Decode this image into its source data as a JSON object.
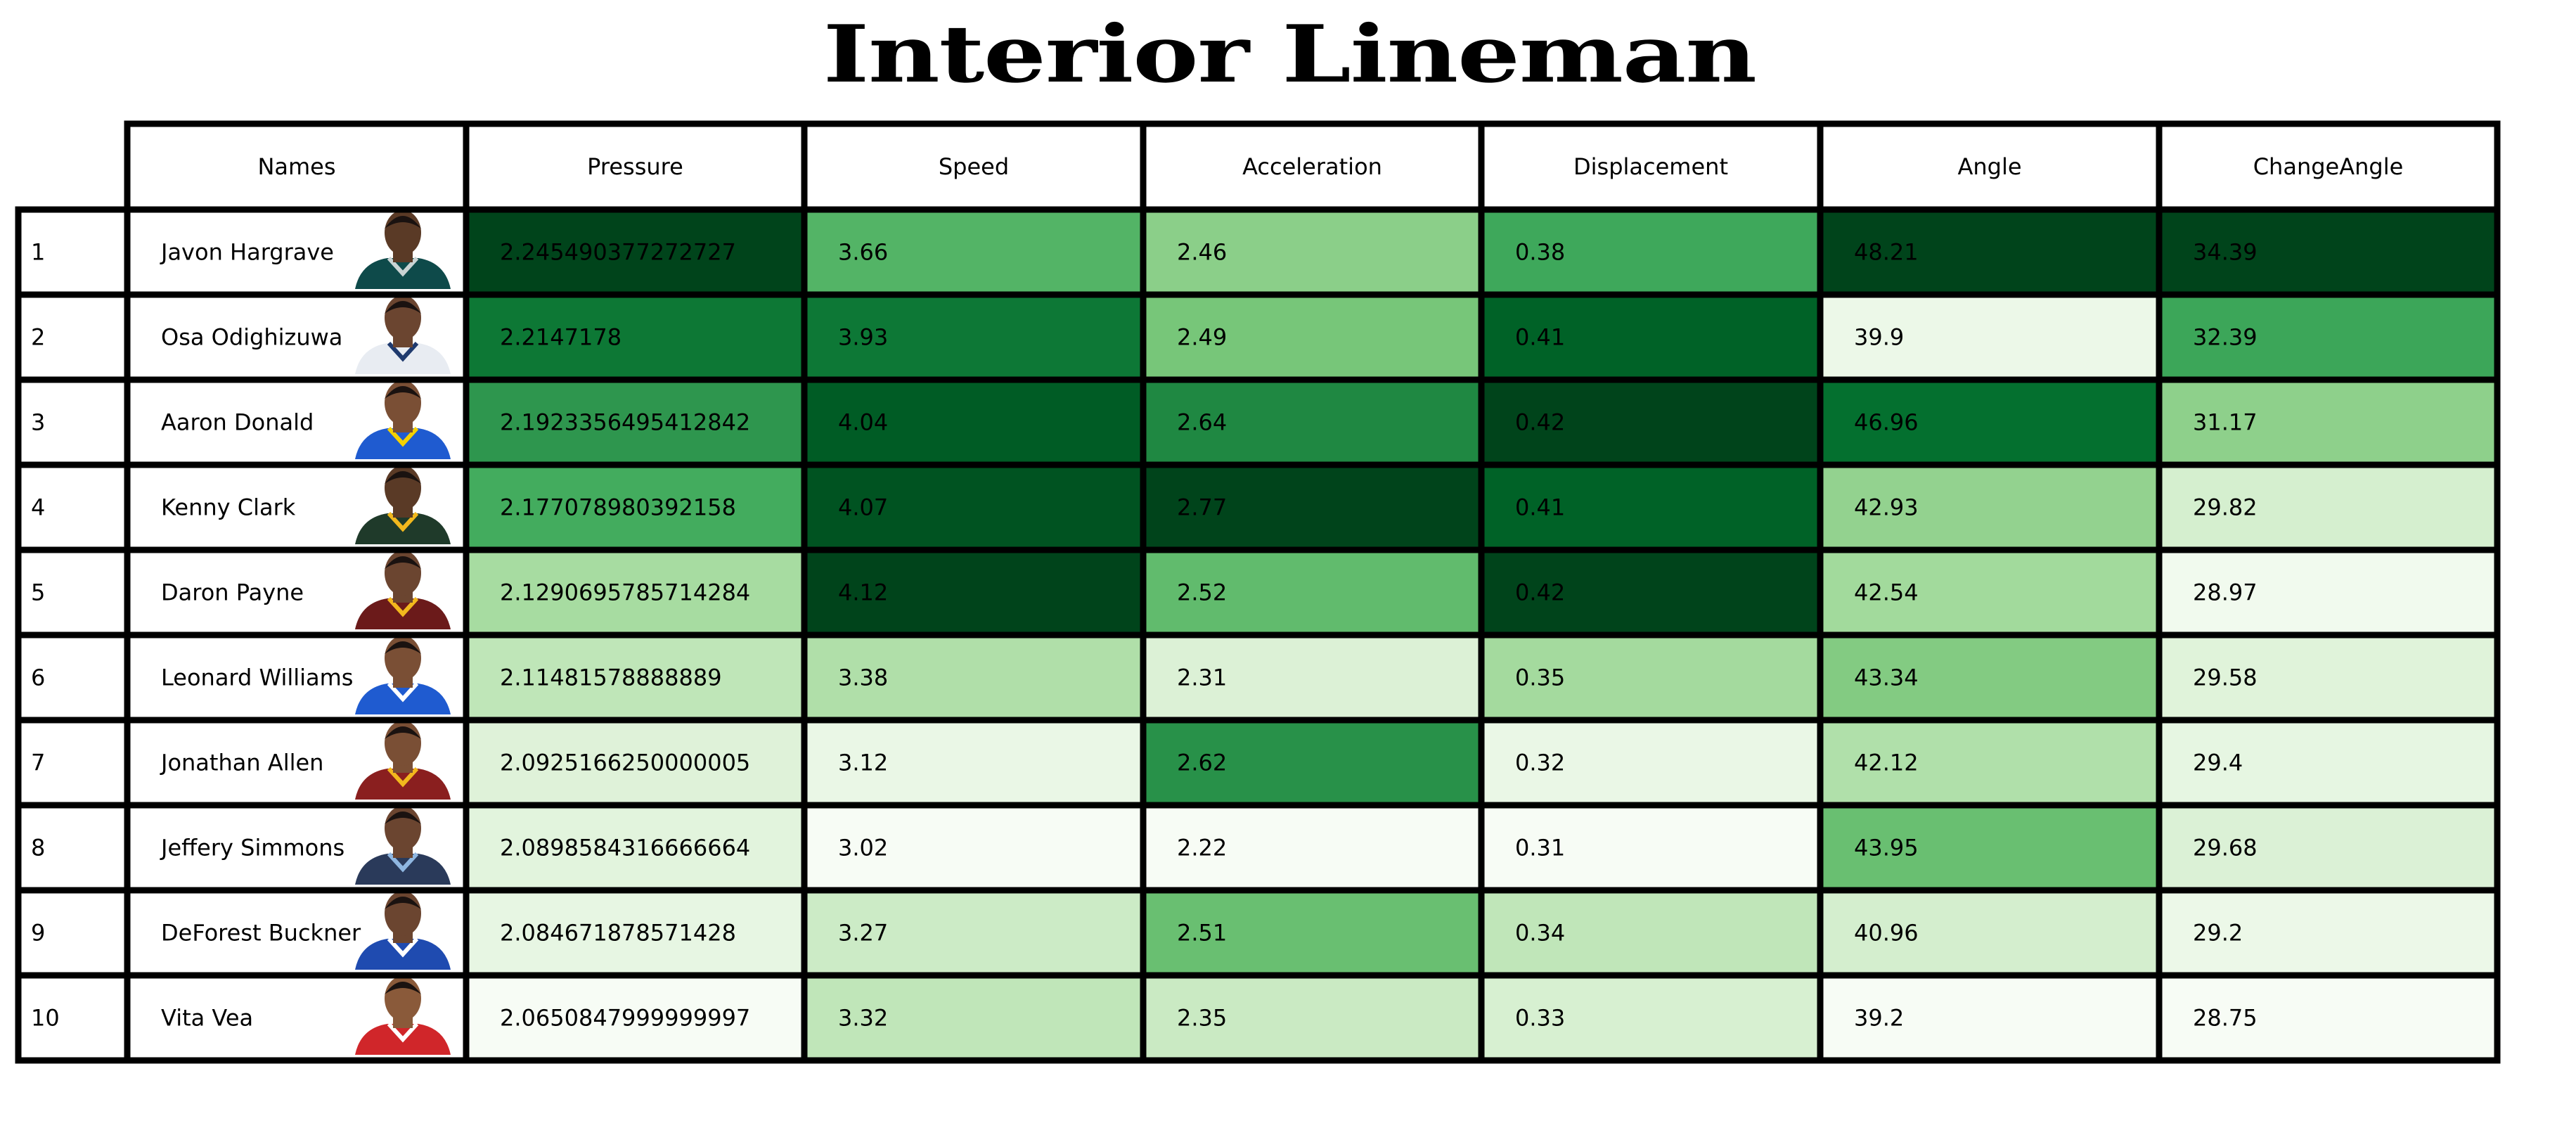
{
  "title": "Interior Lineman",
  "chart_data": {
    "type": "table",
    "colormap": "Greens",
    "columns": [
      "Names",
      "Pressure",
      "Speed",
      "Acceleration",
      "Displacement",
      "Angle",
      "ChangeAngle"
    ],
    "row_index": [
      "1",
      "2",
      "3",
      "4",
      "5",
      "6",
      "7",
      "8",
      "9",
      "10"
    ],
    "rows": [
      {
        "name": "Javon Hargrave",
        "avatar": {
          "skin": "#5a3a26",
          "jersey": "#0e4a4a",
          "trim": "#c9d3d3",
          "hair": "#1a1210"
        },
        "values": [
          "2.245490377272727",
          "3.66",
          "2.46",
          "0.38",
          "48.21",
          "34.39"
        ]
      },
      {
        "name": "Osa Odighizuwa",
        "avatar": {
          "skin": "#6b4530",
          "jersey": "#e8ecf2",
          "trim": "#1f3a6e",
          "hair": "#1a1210"
        },
        "values": [
          "2.2147178",
          "3.93",
          "2.49",
          "0.41",
          "39.9",
          "32.39"
        ]
      },
      {
        "name": "Aaron Donald",
        "avatar": {
          "skin": "#7a4f35",
          "jersey": "#1f5bd0",
          "trim": "#f5d100",
          "hair": "#1a1210"
        },
        "values": [
          "2.1923356495412842",
          "4.04",
          "2.64",
          "0.42",
          "46.96",
          "31.17"
        ]
      },
      {
        "name": "Kenny Clark",
        "avatar": {
          "skin": "#5a3a26",
          "jersey": "#1f3a2a",
          "trim": "#f2b81d",
          "hair": "#1a1210"
        },
        "values": [
          "2.177078980392158",
          "4.07",
          "2.77",
          "0.41",
          "42.93",
          "29.82"
        ]
      },
      {
        "name": "Daron Payne",
        "avatar": {
          "skin": "#6b4530",
          "jersey": "#6b1a1a",
          "trim": "#f2b81d",
          "hair": "#1a1210"
        },
        "values": [
          "2.1290695785714284",
          "4.12",
          "2.52",
          "0.42",
          "42.54",
          "28.97"
        ]
      },
      {
        "name": "Leonard Williams",
        "avatar": {
          "skin": "#7a4f35",
          "jersey": "#1f5bd0",
          "trim": "#ffffff",
          "hair": "#1a1210"
        },
        "values": [
          "2.11481578888889",
          "3.38",
          "2.31",
          "0.35",
          "43.34",
          "29.58"
        ]
      },
      {
        "name": "Jonathan Allen",
        "avatar": {
          "skin": "#7a4f35",
          "jersey": "#8a1f1f",
          "trim": "#f2b81d",
          "hair": "#1a1210"
        },
        "values": [
          "2.0925166250000005",
          "3.12",
          "2.62",
          "0.32",
          "42.12",
          "29.4"
        ]
      },
      {
        "name": "Jeffery Simmons",
        "avatar": {
          "skin": "#6b4530",
          "jersey": "#2a3a5a",
          "trim": "#8fb6e0",
          "hair": "#1a1210"
        },
        "values": [
          "2.0898584316666664",
          "3.02",
          "2.22",
          "0.31",
          "43.95",
          "29.68"
        ]
      },
      {
        "name": "DeForest Buckner",
        "avatar": {
          "skin": "#6b4530",
          "jersey": "#1f4bb0",
          "trim": "#ffffff",
          "hair": "#1a1210"
        },
        "values": [
          "2.084671878571428",
          "3.27",
          "2.51",
          "0.34",
          "40.96",
          "29.2"
        ]
      },
      {
        "name": "Vita Vea",
        "avatar": {
          "skin": "#8a5a3a",
          "jersey": "#d0262a",
          "trim": "#ffffff",
          "hair": "#1a1210"
        },
        "values": [
          "2.0650847999999997",
          "3.32",
          "2.35",
          "0.33",
          "39.2",
          "28.75"
        ]
      }
    ]
  }
}
